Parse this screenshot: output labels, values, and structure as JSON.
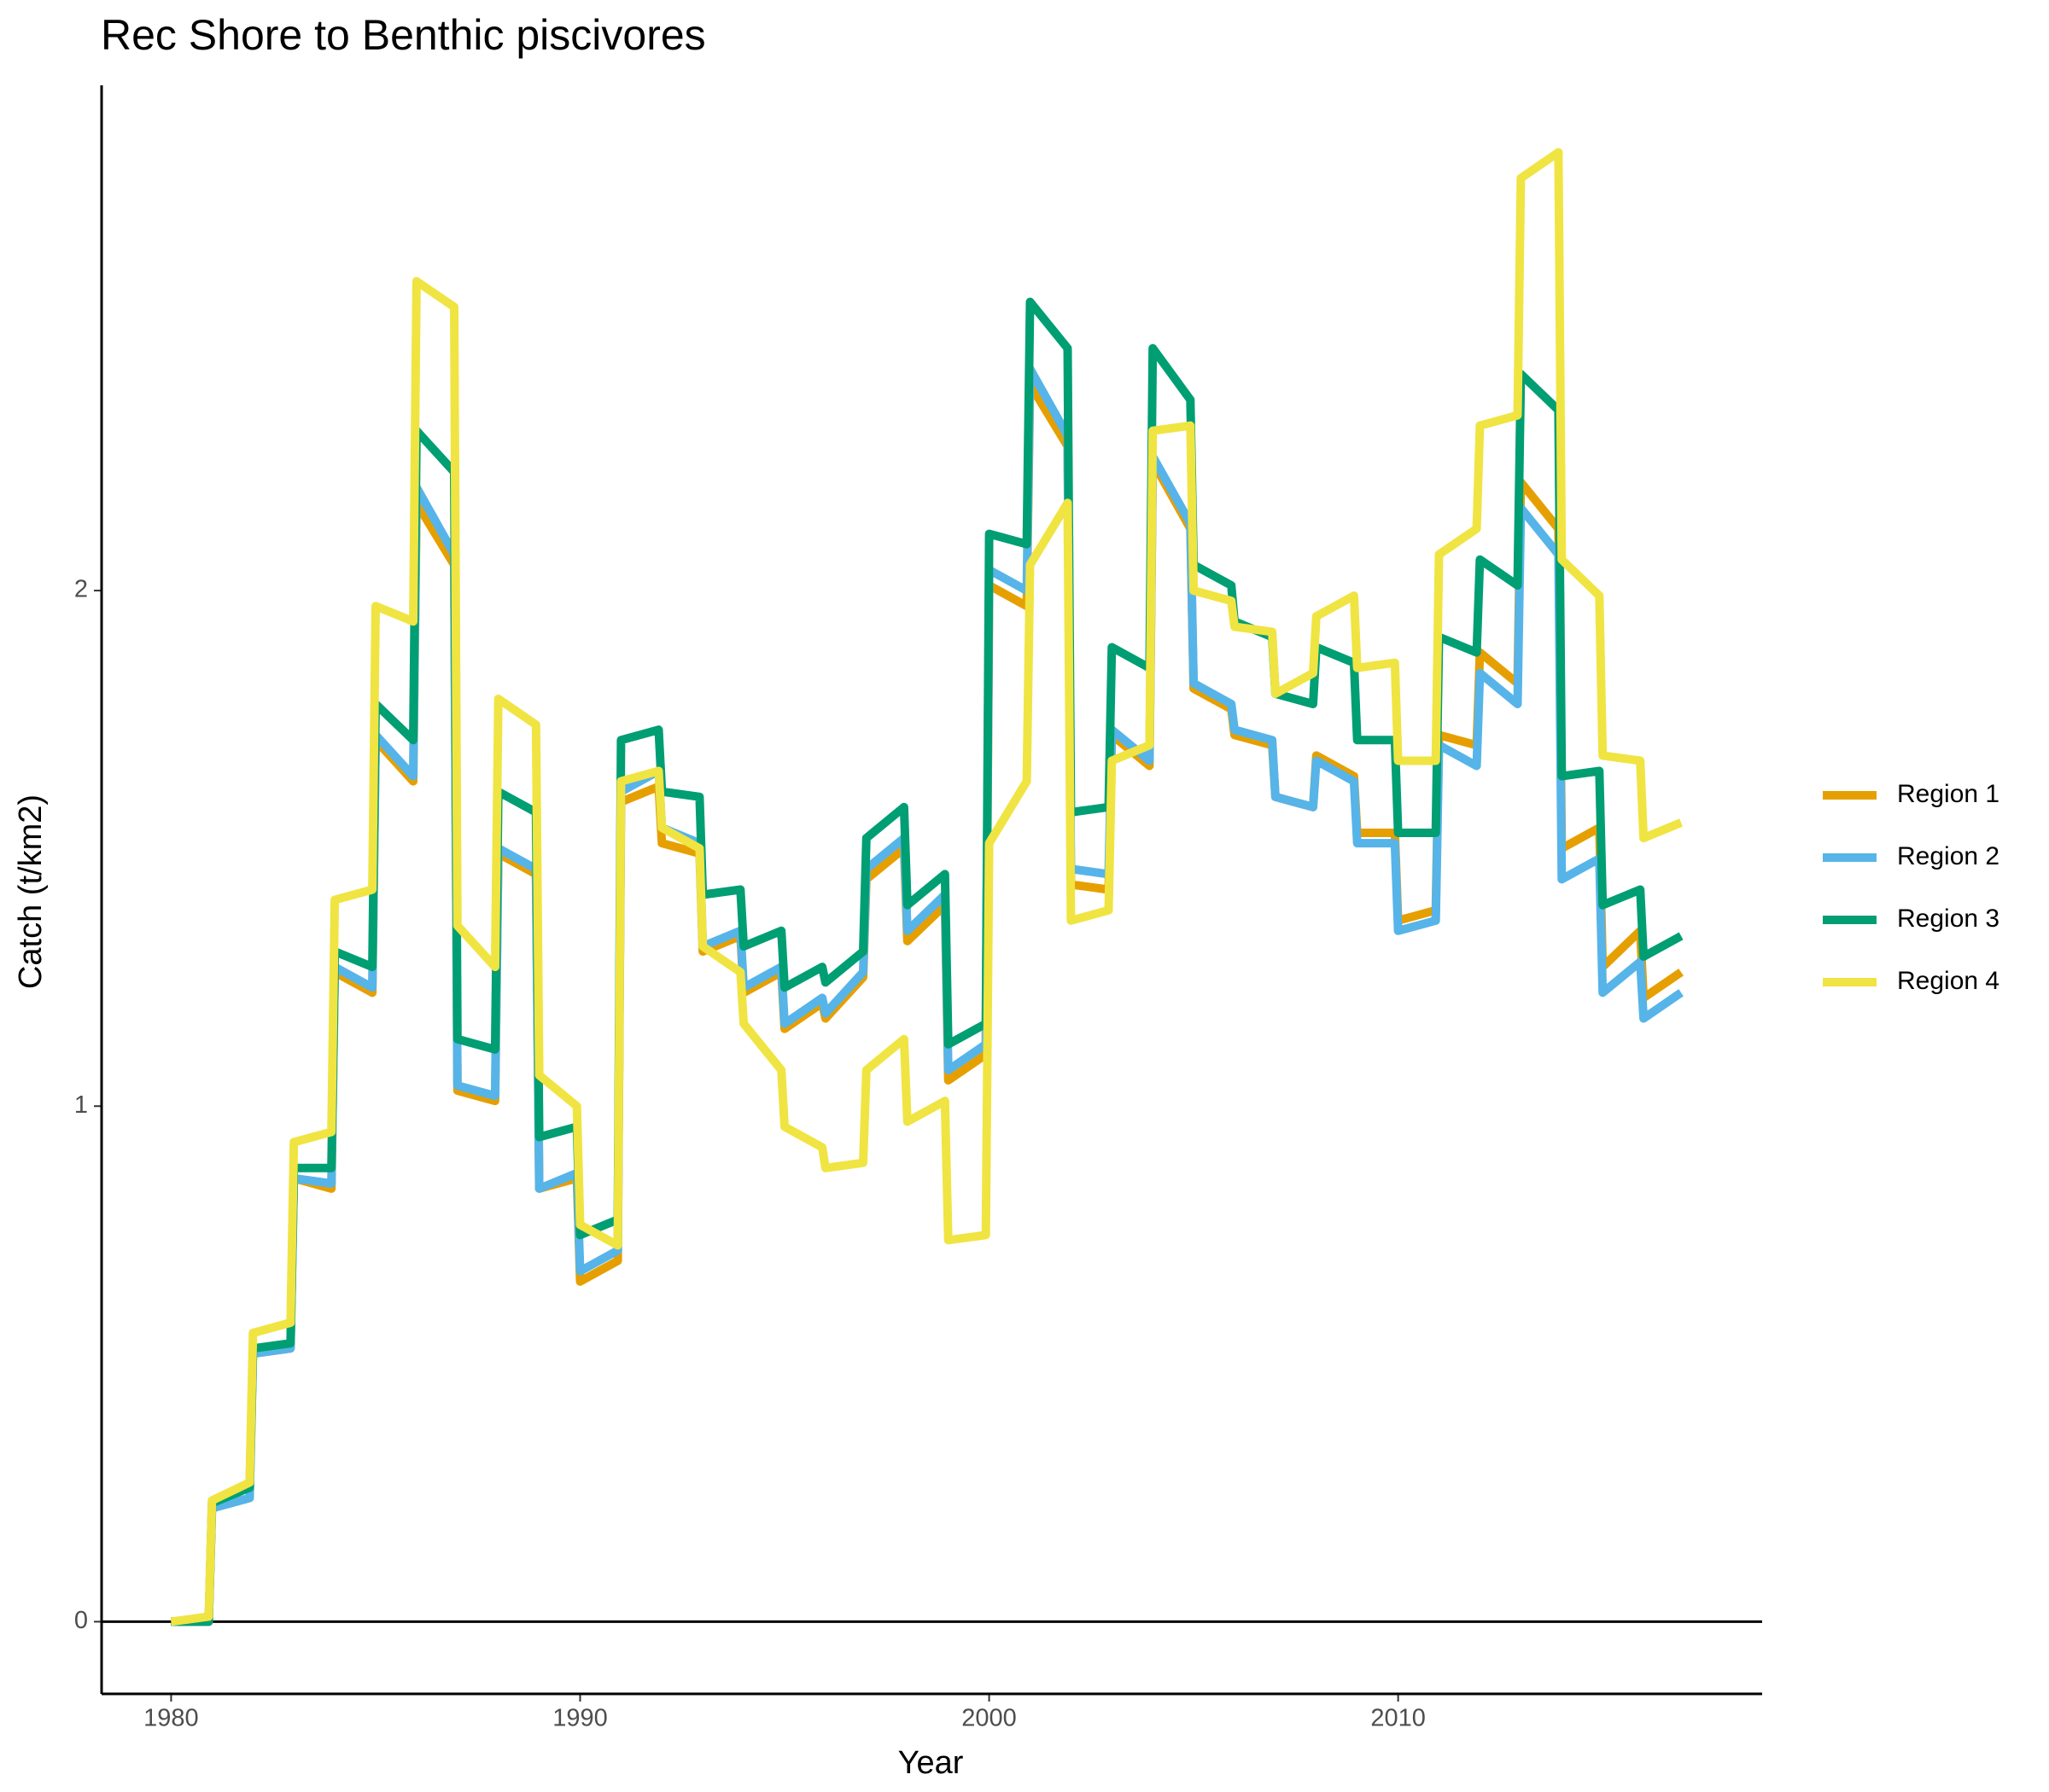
{
  "chart_data": {
    "type": "line",
    "title": "Rec Shore to Benthic piscivores",
    "x_label": "Year",
    "y_label": "Catch (t/km2)",
    "xlim": [
      1978.3,
      2018.9
    ],
    "ylim": [
      -0.14,
      2.98
    ],
    "xticks": [
      1980,
      1990,
      2000,
      2010
    ],
    "yticks": [
      0,
      1,
      2
    ],
    "zero_line": true,
    "legend": "right",
    "x": [
      1980,
      1980.92,
      1981,
      1981.92,
      1982,
      1982.92,
      1983,
      1983.92,
      1984,
      1984.92,
      1985,
      1985.92,
      1986,
      1986.92,
      1987,
      1987.92,
      1988,
      1988.92,
      1989,
      1989.92,
      1990,
      1990.92,
      1991,
      1991.92,
      1992,
      1992.92,
      1993,
      1993.92,
      1994,
      1994.92,
      1995,
      1995.92,
      1996,
      1996.92,
      1997,
      1997.92,
      1998,
      1998.92,
      1999,
      1999.92,
      2000,
      2000.92,
      2001,
      2001.92,
      2002,
      2002.92,
      2003,
      2003.92,
      2004,
      2004.92,
      2005,
      2005.92,
      2006,
      2006.92,
      2007,
      2007.92,
      2008,
      2008.92,
      2009,
      2009.92,
      2010,
      2010.92,
      2011,
      2011.92,
      2012,
      2012.92,
      2013,
      2013.92,
      2014,
      2014.92,
      2015,
      2015.92,
      2016,
      2016.92
    ],
    "series": [
      {
        "name": "Region 1",
        "color": "#e69f00",
        "values": [
          0,
          0,
          0.22,
          0.24,
          0.52,
          0.53,
          0.86,
          0.84,
          1.26,
          1.22,
          1.71,
          1.63,
          2.17,
          2.05,
          1.03,
          1.01,
          1.49,
          1.45,
          0.84,
          0.86,
          0.66,
          0.7,
          1.59,
          1.62,
          1.51,
          1.49,
          1.3,
          1.33,
          1.22,
          1.26,
          1.15,
          1.2,
          1.17,
          1.25,
          1.44,
          1.5,
          1.32,
          1.39,
          1.05,
          1.1,
          2.01,
          1.97,
          2.4,
          2.28,
          1.43,
          1.42,
          1.72,
          1.66,
          2.25,
          2.12,
          1.81,
          1.77,
          1.72,
          1.7,
          1.6,
          1.58,
          1.68,
          1.64,
          1.53,
          1.53,
          1.36,
          1.38,
          1.72,
          1.7,
          1.88,
          1.82,
          2.21,
          2.12,
          1.5,
          1.54,
          1.27,
          1.34,
          1.21,
          1.26
        ]
      },
      {
        "name": "Region 2",
        "color": "#56b4e9",
        "values": [
          0,
          0,
          0.22,
          0.24,
          0.52,
          0.53,
          0.86,
          0.85,
          1.27,
          1.23,
          1.72,
          1.64,
          2.2,
          2.07,
          1.04,
          1.02,
          1.5,
          1.46,
          0.84,
          0.87,
          0.68,
          0.72,
          1.61,
          1.65,
          1.54,
          1.51,
          1.31,
          1.34,
          1.23,
          1.27,
          1.16,
          1.21,
          1.18,
          1.26,
          1.46,
          1.52,
          1.34,
          1.41,
          1.07,
          1.12,
          2.04,
          2.0,
          2.43,
          2.3,
          1.46,
          1.45,
          1.73,
          1.67,
          2.26,
          2.13,
          1.82,
          1.78,
          1.73,
          1.71,
          1.6,
          1.58,
          1.67,
          1.63,
          1.51,
          1.51,
          1.34,
          1.36,
          1.7,
          1.66,
          1.84,
          1.78,
          2.16,
          2.07,
          1.44,
          1.48,
          1.22,
          1.28,
          1.17,
          1.22
        ]
      },
      {
        "name": "Region 3",
        "color": "#009e73",
        "values": [
          0,
          0,
          0.23,
          0.26,
          0.53,
          0.54,
          0.88,
          0.88,
          1.3,
          1.27,
          1.78,
          1.71,
          2.31,
          2.23,
          1.13,
          1.11,
          1.61,
          1.57,
          0.94,
          0.96,
          0.75,
          0.78,
          1.71,
          1.73,
          1.61,
          1.6,
          1.41,
          1.42,
          1.31,
          1.34,
          1.23,
          1.27,
          1.24,
          1.3,
          1.52,
          1.58,
          1.39,
          1.45,
          1.12,
          1.16,
          2.11,
          2.09,
          2.56,
          2.47,
          1.57,
          1.58,
          1.89,
          1.85,
          2.47,
          2.37,
          2.05,
          2.01,
          1.94,
          1.91,
          1.8,
          1.78,
          1.89,
          1.86,
          1.71,
          1.71,
          1.53,
          1.53,
          1.91,
          1.88,
          2.06,
          2.01,
          2.42,
          2.35,
          1.64,
          1.65,
          1.39,
          1.42,
          1.29,
          1.33
        ]
      },
      {
        "name": "Region 4",
        "color": "#f0e442",
        "values": [
          0,
          0.01,
          0.235,
          0.27,
          0.56,
          0.58,
          0.93,
          0.95,
          1.4,
          1.42,
          1.97,
          1.94,
          2.6,
          2.55,
          1.35,
          1.27,
          1.79,
          1.74,
          1.06,
          1.0,
          0.77,
          0.73,
          1.63,
          1.65,
          1.54,
          1.5,
          1.31,
          1.26,
          1.16,
          1.07,
          0.96,
          0.92,
          0.88,
          0.89,
          1.07,
          1.13,
          0.97,
          1.01,
          0.74,
          0.75,
          1.51,
          1.63,
          2.05,
          2.17,
          1.36,
          1.38,
          1.67,
          1.7,
          2.31,
          2.32,
          2.0,
          1.98,
          1.93,
          1.92,
          1.8,
          1.84,
          1.95,
          1.99,
          1.85,
          1.86,
          1.67,
          1.67,
          2.07,
          2.12,
          2.32,
          2.34,
          2.8,
          2.85,
          2.06,
          1.99,
          1.68,
          1.67,
          1.52,
          1.55
        ]
      }
    ]
  }
}
